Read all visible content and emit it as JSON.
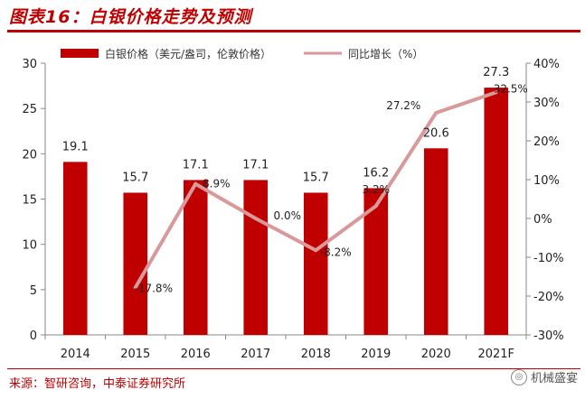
{
  "header": {
    "title": "图表16：白银价格走势及预测"
  },
  "footer": {
    "source": "来源：智研咨询，中泰证券研究所",
    "watermark": "机械盛宴"
  },
  "chart_data": {
    "type": "bar",
    "title": "图表16：白银价格走势及预测",
    "categories": [
      "2014",
      "2015",
      "2016",
      "2017",
      "2018",
      "2019",
      "2020",
      "2021F"
    ],
    "series": [
      {
        "name": "白银价格（美元/盎司，伦敦价格）",
        "type": "bar",
        "axis": "left",
        "color": "#c00000",
        "values": [
          19.1,
          15.7,
          17.1,
          17.1,
          15.7,
          16.2,
          20.6,
          27.3
        ],
        "labels": [
          "19.1",
          "15.7",
          "17.1",
          "17.1",
          "15.7",
          "16.2",
          "20.6",
          "27.3"
        ]
      },
      {
        "name": "同比增长（%）",
        "type": "line",
        "axis": "right",
        "color": "#d9999a",
        "values": [
          null,
          -17.8,
          8.9,
          0.0,
          -8.2,
          3.2,
          27.2,
          32.5
        ],
        "labels": [
          "",
          "-17.8%",
          "8.9%",
          "0.0%",
          "-8.2%",
          "3.2%",
          "27.2%",
          "32.5%"
        ]
      }
    ],
    "ylim_left": [
      0,
      30
    ],
    "yticks_left": [
      "0",
      "5",
      "10",
      "15",
      "20",
      "25",
      "30"
    ],
    "ylim_right": [
      -30,
      40
    ],
    "yticks_right": [
      "-30%",
      "-20%",
      "-10%",
      "0%",
      "10%",
      "20%",
      "30%",
      "40%"
    ],
    "xlabel": "",
    "ylabel": "",
    "grid": false,
    "legend_position": "top"
  }
}
